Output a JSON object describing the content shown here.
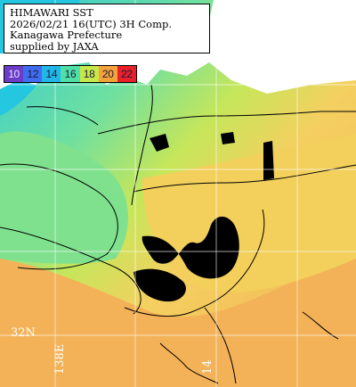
{
  "title_box": {
    "lines": [
      "HIMAWARI SST",
      "2026/02/21 16(UTC) 3H Comp.",
      "Kanagawa Prefecture",
      "supplied by JAXA"
    ]
  },
  "legend": {
    "items": [
      {
        "label": "10",
        "color": "#6a3dc8"
      },
      {
        "label": "12",
        "color": "#3f6df0"
      },
      {
        "label": "14",
        "color": "#21b7e8"
      },
      {
        "label": "16",
        "color": "#4fe0a8"
      },
      {
        "label": "18",
        "color": "#c8e84a"
      },
      {
        "label": "20",
        "color": "#f4a23a"
      },
      {
        "label": "22",
        "color": "#e8202a"
      }
    ]
  },
  "grid_labels": {
    "lat_32n": "32N",
    "lon_138e": "138E",
    "lon_14": "14"
  },
  "colors": {
    "land_mask": "#ffffff",
    "cloud_mask": "#000000",
    "cold_water": "#3fd6d6",
    "cool_water": "#7ee08a",
    "mild_water": "#b9e05a",
    "warm_water": "#f2c64c",
    "hot_water": "#f0a850",
    "grid_line": "#ffffff",
    "contour_line": "#000000"
  }
}
